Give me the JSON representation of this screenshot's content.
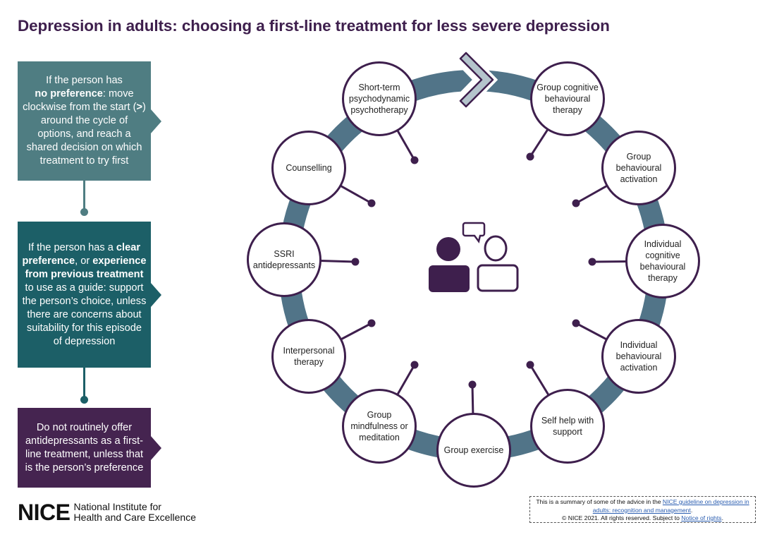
{
  "title": "Depression in adults: choosing a first-line treatment for less severe depression",
  "colors": {
    "ring": "#517488",
    "purple": "#3e1f4d",
    "box1": "#4f7d82",
    "box2": "#1c5f67",
    "box3": "#452450",
    "chevron_fill": "#b4c4cc"
  },
  "left_panel": {
    "box1": {
      "t1": "If the person has",
      "b1": "no preference",
      "t2": ":",
      "t3": "move clockwise from the start (",
      "b2": ">",
      "t4": ") around the cycle of options, and reach a shared decision on which treatment to try first"
    },
    "box2": {
      "t1": "If the person has a",
      "b1": "clear preference",
      "t2": ",",
      "t3": "or",
      "b2": "experience from previous treatment",
      "t4": "to use as a guide: support the person’s choice, unless there are concerns about suitability for this episode of depression"
    },
    "box3": {
      "t1": "Do not routinely offer antidepressants as a first-line treatment, unless that is the person’s preference"
    }
  },
  "cycle": {
    "start_icon": "chevron-right-icon",
    "center_icon": "two-people-talking-icon",
    "options": [
      "Group cognitive behavioural therapy",
      "Group behavioural activation",
      "Individual cognitive behavioural therapy",
      "Individual behavioural activation",
      "Self help with support",
      "Group exercise",
      "Group mindfulness or meditation",
      "Interpersonal therapy",
      "SSRI antidepressants",
      "Counselling",
      "Short-term psychodynamic psychotherapy"
    ]
  },
  "logo": {
    "name": "NICE",
    "line1": "National Institute for",
    "line2": "Health and Care Excellence"
  },
  "footer": {
    "t1": "This is a summary of some of the advice in the",
    "link1": "NICE guideline on depression in adults: recognition and management",
    "t2": ".",
    "t3": "© NICE 2021. All rights reserved. Subject to",
    "link2": "Notice of rights",
    "t4": "."
  }
}
